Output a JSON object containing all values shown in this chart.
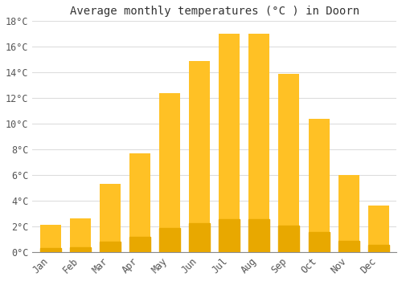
{
  "title": "Average monthly temperatures (°C ) in Doorn",
  "months": [
    "Jan",
    "Feb",
    "Mar",
    "Apr",
    "May",
    "Jun",
    "Jul",
    "Aug",
    "Sep",
    "Oct",
    "Nov",
    "Dec"
  ],
  "values": [
    2.1,
    2.6,
    5.3,
    7.7,
    12.4,
    14.9,
    17.0,
    17.0,
    13.9,
    10.4,
    6.0,
    3.6
  ],
  "bar_color": "#FFC125",
  "bar_edge_color": "#E8A800",
  "background_color": "#FFFFFF",
  "grid_color": "#DDDDDD",
  "ylim": [
    0,
    18
  ],
  "yticks": [
    0,
    2,
    4,
    6,
    8,
    10,
    12,
    14,
    16,
    18
  ],
  "title_fontsize": 10,
  "tick_fontsize": 8.5,
  "font_family": "monospace"
}
